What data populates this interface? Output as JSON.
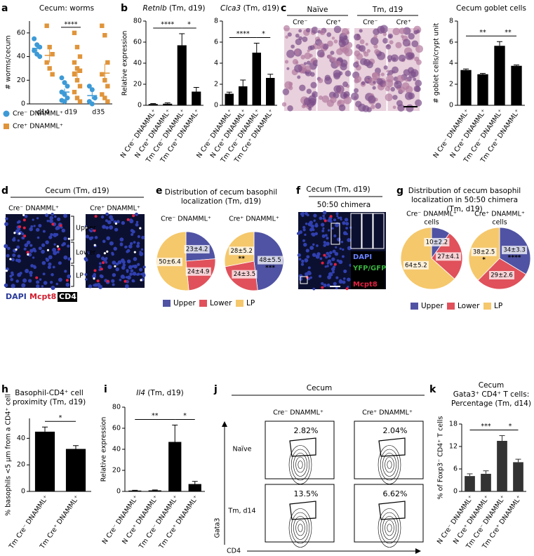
{
  "panel_labels": [
    "a",
    "b",
    "c",
    "d",
    "e",
    "f",
    "g",
    "h",
    "i",
    "j",
    "k"
  ],
  "chart_data": [
    {
      "type": "dot",
      "title": "Cecum: worms",
      "y_label": "# worms/cecum",
      "categories": [
        "d14",
        "d19",
        "d35"
      ],
      "ylim": [
        0,
        70
      ],
      "yticks": [
        0,
        20,
        40,
        60
      ],
      "series": [
        {
          "name": "Cre⁻ DNAMML⁺",
          "color": "#3d9ad6",
          "marker": "circle",
          "values": [
            [
              55,
              50,
              48,
              45,
              42,
              40
            ],
            [
              22,
              18,
              15,
              10,
              8,
              5,
              3,
              2
            ],
            [
              15,
              12,
              5,
              2,
              0
            ]
          ],
          "means": [
            47,
            10,
            7
          ],
          "errors": [
            3,
            3,
            3
          ]
        },
        {
          "name": "Cre⁺ DNAMML⁺",
          "color": "#e0943a",
          "marker": "square",
          "values": [
            [
              66,
              48,
              42,
              35,
              30,
              25
            ],
            [
              60,
              48,
              40,
              35,
              30,
              28,
              25,
              20,
              15,
              10,
              5,
              2
            ],
            [
              66,
              58,
              35,
              25,
              20,
              15,
              8,
              5,
              2
            ]
          ],
          "means": [
            41,
            27,
            26
          ],
          "errors": [
            6,
            5,
            8
          ]
        }
      ],
      "annotations": [
        {
          "text": "****",
          "at": "d19"
        }
      ]
    },
    {
      "type": "bar",
      "gene": "Retnlb",
      "title": " (Tm, d19)",
      "y_label": "Relative expression",
      "categories": [
        "N Cre⁻ DNAMML⁺",
        "N Cre⁺ DNAMML⁺",
        "Tm Cre⁻ DNAMML⁺",
        "Tm Cre⁺ DNAMML⁺"
      ],
      "values": [
        1.2,
        1.5,
        57,
        13
      ],
      "errors": [
        0.5,
        0.8,
        11,
        4
      ],
      "color": "#000000",
      "ylim": [
        0,
        80
      ],
      "yticks": [
        0,
        20,
        40,
        60,
        80
      ],
      "annotations": [
        {
          "text": "****",
          "between": [
            "N Cre⁻ DNAMML⁺",
            "Tm Cre⁻ DNAMML⁺"
          ]
        },
        {
          "text": "*",
          "between": [
            "Tm Cre⁻ DNAMML⁺",
            "Tm Cre⁺ DNAMML⁺"
          ]
        }
      ]
    },
    {
      "type": "bar",
      "gene": "Clca3",
      "title": " (Tm, d19)",
      "categories": [
        "N Cre⁻ DNAMML⁺",
        "N Cre⁺ DNAMML⁺",
        "Tm Cre⁻ DNAMML⁺",
        "Tm Cre⁺ DNAMML⁺"
      ],
      "values": [
        1.1,
        1.8,
        5.0,
        2.6
      ],
      "errors": [
        0.15,
        0.6,
        0.9,
        0.35
      ],
      "color": "#000000",
      "ylim": [
        0,
        8
      ],
      "yticks": [
        0,
        2,
        4,
        6,
        8
      ],
      "annotations": [
        {
          "text": "****",
          "between": [
            "N Cre⁻ DNAMML⁺",
            "Tm Cre⁻ DNAMML⁺"
          ]
        },
        {
          "text": "*",
          "between": [
            "Tm Cre⁻ DNAMML⁺",
            "Tm Cre⁺ DNAMML⁺"
          ]
        }
      ]
    },
    {
      "type": "bar",
      "title": "Cecum goblet cells",
      "y_label": "# goblet cells/crypt unit",
      "categories": [
        "N Cre⁻ DNAMML⁺",
        "N Cre⁺ DNAMML⁺",
        "Tm Cre⁻ DNAMML⁺",
        "Tm Cre⁺ DNAMML⁺"
      ],
      "values": [
        3.35,
        2.95,
        5.65,
        3.75
      ],
      "errors": [
        0.1,
        0.08,
        0.4,
        0.08
      ],
      "color": "#000000",
      "ylim": [
        0,
        8
      ],
      "yticks": [
        0,
        2,
        4,
        6,
        8
      ],
      "annotations": [
        {
          "text": "**",
          "between": [
            "N Cre⁻ DNAMML⁺",
            "Tm Cre⁻ DNAMML⁺"
          ]
        },
        {
          "text": "**",
          "between": [
            "Tm Cre⁻ DNAMML⁺",
            "Tm Cre⁺ DNAMML⁺"
          ]
        }
      ]
    },
    {
      "type": "pie",
      "title": [
        "Distribution of cecum basophil",
        "localization (Tm, d19)"
      ],
      "categories": [
        "Upper",
        "Lower",
        "LP"
      ],
      "colors": [
        "#5053a3",
        "#e0515b",
        "#f5c86c"
      ],
      "pies": [
        {
          "name": "Cre⁻ DNAMML⁺",
          "values": [
            23,
            24,
            50
          ],
          "value_labels": [
            "23±4.2",
            "24±4.9",
            "50±6.4"
          ]
        },
        {
          "name": "Cre⁺ DNAMML⁺",
          "values": [
            48,
            24,
            28
          ],
          "value_labels": [
            "48±5.5",
            "24±3.5",
            "28±5.2"
          ],
          "significance": [
            {
              "category": "Upper",
              "text": "***"
            },
            {
              "category": "LP",
              "text": "**"
            }
          ]
        }
      ]
    },
    {
      "type": "pie",
      "title": [
        "Distribution of cecum basophil",
        "localization in 50:50 chimera",
        "(Tm, d19)"
      ],
      "categories": [
        "Upper",
        "Lower",
        "LP"
      ],
      "colors": [
        "#5053a3",
        "#e0515b",
        "#f5c86c"
      ],
      "pies": [
        {
          "name": [
            "Cre⁻ DNAMML⁺",
            "cells"
          ],
          "values": [
            10,
            27,
            64
          ],
          "value_labels": [
            "10±2.2",
            "27±4.1",
            "64±5.2"
          ]
        },
        {
          "name": [
            "Cre⁺ DNAMML⁺",
            "cells"
          ],
          "values": [
            34,
            29,
            38
          ],
          "value_labels": [
            "34±3.3",
            "29±2.6",
            "38±2.5"
          ],
          "significance": [
            {
              "category": "Upper",
              "text": "****"
            },
            {
              "category": "LP",
              "text": "*"
            }
          ]
        }
      ]
    },
    {
      "type": "bar",
      "title": [
        "Basophil-CD4⁺ cell",
        "proximity (Tm, d19)"
      ],
      "y_label": "% basophils <5 μm from a CD4⁺ cell",
      "categories": [
        "Tm Cre⁻ DNAMML⁺",
        "Tm Cre⁺ DNAMML⁺"
      ],
      "values": [
        45,
        32
      ],
      "errors": [
        3.5,
        2.5
      ],
      "color": "#000000",
      "ylim": [
        0,
        55
      ],
      "yticks": [
        0,
        20,
        40
      ],
      "annotations": [
        {
          "text": "*",
          "between": [
            "Tm Cre⁻ DNAMML⁺",
            "Tm Cre⁺ DNAMML⁺"
          ]
        }
      ]
    },
    {
      "type": "bar",
      "gene": "Il4",
      "title": " (Tm, d19)",
      "y_label": "Relative expression",
      "categories": [
        "N Cre⁻ DNAMML⁺",
        "N Cre⁺ DNAMML⁺",
        "Tm Cre⁻ DNAMML⁺",
        "Tm Cre⁺ DNAMML⁺"
      ],
      "values": [
        0.8,
        1,
        47,
        7
      ],
      "errors": [
        0.3,
        0.4,
        16,
        2.5
      ],
      "color": "#000000",
      "ylim": [
        0,
        80
      ],
      "yticks": [
        0,
        20,
        40,
        60,
        80
      ],
      "annotations": [
        {
          "text": "**",
          "between": [
            "N Cre⁻ DNAMML⁺",
            "Tm Cre⁻ DNAMML⁺"
          ]
        },
        {
          "text": "*",
          "between": [
            "Tm Cre⁻ DNAMML⁺",
            "Tm Cre⁺ DNAMML⁺"
          ]
        }
      ]
    },
    {
      "type": "bar",
      "title": [
        "Cecum",
        "Gata3⁺ CD4⁺ T cells:",
        "Percentage (Tm, d14)"
      ],
      "y_label": "% of Foxp3⁻ CD4⁺ T cells",
      "categories": [
        "N Cre⁻ DNAMML⁺",
        "N Cre⁺ DNAMML⁺",
        "Tm Cre⁻ DNAMML⁺",
        "Tm Cre⁺ DNAMML⁺"
      ],
      "values": [
        4.1,
        4.7,
        13.5,
        7.8
      ],
      "errors": [
        0.6,
        0.8,
        1.4,
        0.8
      ],
      "color": "#333333",
      "ylim": [
        0,
        18
      ],
      "yticks": [
        0,
        6,
        12,
        18
      ],
      "annotations": [
        {
          "text": "***",
          "between": [
            "N Cre⁻ DNAMML⁺",
            "Tm Cre⁻ DNAMML⁺"
          ]
        },
        {
          "text": "*",
          "between": [
            "Tm Cre⁻ DNAMML⁺",
            "Tm Cre⁺ DNAMML⁺"
          ]
        }
      ]
    }
  ],
  "panel_c": {
    "headers": [
      "Naïve",
      "Tm, d19"
    ],
    "subheaders": [
      "Cre⁻",
      "Cre⁺",
      "Cre⁻",
      "Cre⁺"
    ]
  },
  "panel_d": {
    "title": "Cecum (Tm, d19)",
    "images": [
      "Cre⁻ DNAMML⁺",
      "Cre⁺ DNAMML⁺"
    ],
    "regions": [
      "Upper",
      "Lower",
      "LP"
    ],
    "stains": [
      "DAPI",
      "Mcpt8",
      "CD4"
    ]
  },
  "panel_f": {
    "title": "Cecum (Tm, d19)",
    "subtitle": "50:50 chimera",
    "stains": [
      "DAPI",
      "YFP/GFP",
      "Mcpt8"
    ]
  },
  "panel_j": {
    "title": "Cecum",
    "columns": [
      "Cre⁻ DNAMML⁺",
      "Cre⁺ DNAMML⁺"
    ],
    "rows": [
      "Naïve",
      "Tm, d14"
    ],
    "gates": [
      [
        "2.82%",
        "2.04%"
      ],
      [
        "13.5%",
        "6.62%"
      ]
    ],
    "y_label": "Gata3",
    "x_label": "CD4"
  }
}
